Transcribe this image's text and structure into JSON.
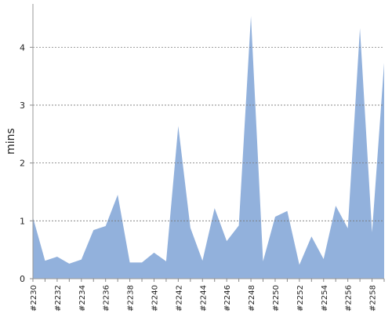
{
  "chart_data": {
    "type": "area",
    "y_label": "mins",
    "categories": [
      "#2230",
      null,
      "#2232",
      null,
      "#2234",
      null,
      "#2236",
      null,
      "#2238",
      null,
      "#2240",
      null,
      "#2242",
      null,
      "#2244",
      null,
      "#2246",
      null,
      "#2248",
      null,
      "#2250",
      null,
      "#2252",
      null,
      "#2254",
      null,
      "#2256",
      null,
      "#2258",
      null
    ],
    "values": [
      1.06,
      0.31,
      0.38,
      0.26,
      0.33,
      0.84,
      0.91,
      1.45,
      0.28,
      0.28,
      0.45,
      0.3,
      2.64,
      0.88,
      0.31,
      1.22,
      0.65,
      0.92,
      4.54,
      0.3,
      1.07,
      1.17,
      0.24,
      0.73,
      0.34,
      1.26,
      0.87,
      4.33,
      0.8,
      3.73
    ],
    "color": "#92b1dc",
    "ylim": [
      0,
      4.75
    ],
    "yticks": [
      0,
      1,
      2,
      3,
      4
    ],
    "grid": true
  }
}
